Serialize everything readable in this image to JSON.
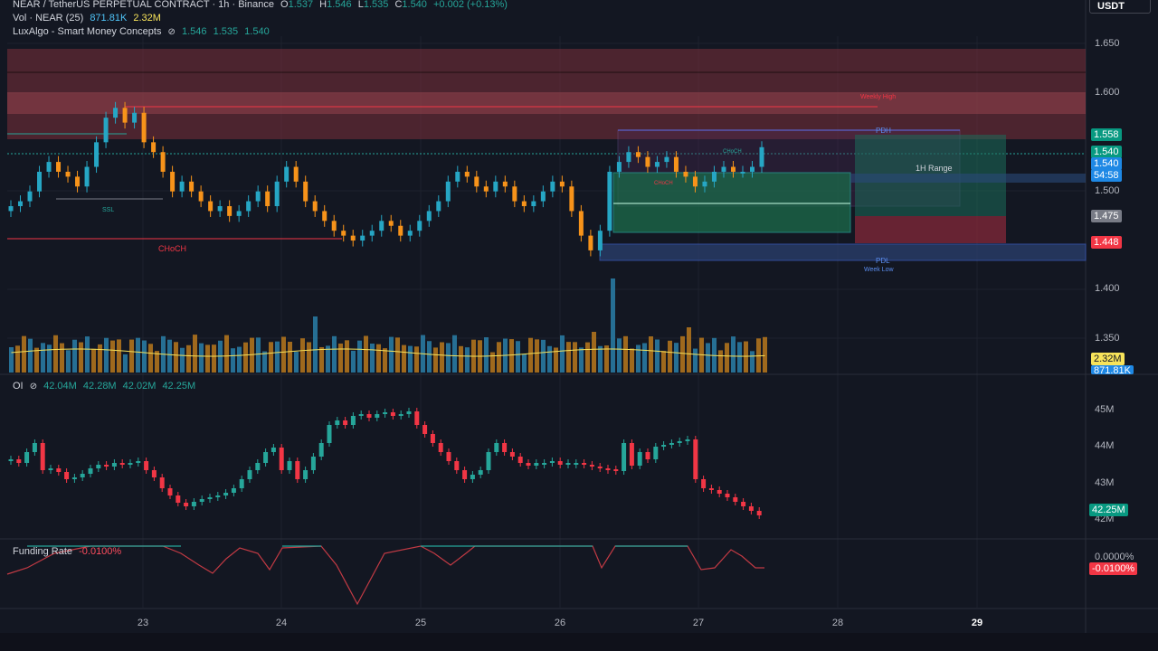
{
  "header": {
    "symbol": "NEAR / TetherUS PERPETUAL CONTRACT · 1h · Binance",
    "o_label": "O",
    "o": "1.537",
    "h_label": "H",
    "h": "1.546",
    "l_label": "L",
    "l": "1.535",
    "c_label": "C",
    "c": "1.540",
    "change": "+0.002 (+0.13%)"
  },
  "volume_legend": {
    "label": "Vol · NEAR (25)",
    "v1": "871.81K",
    "v2": "2.32M"
  },
  "indicator_legend": {
    "label": "LuxAlgo - Smart Money Concepts",
    "icon": "eye-slash-icon",
    "v1": "1.546",
    "v2": "1.535",
    "v3": "1.540"
  },
  "oi_legend": {
    "label": "OI",
    "icon": "eye-slash-icon",
    "v1": "42.04M",
    "v2": "42.28M",
    "v3": "42.02M",
    "v4": "42.25M"
  },
  "funding_legend": {
    "label": "Funding Rate",
    "value": "-0.0100%"
  },
  "currency_button": "USDT",
  "price_axis": {
    "ticks": [
      {
        "label": "1.650",
        "value": 1.65
      },
      {
        "label": "1.600",
        "value": 1.6
      },
      {
        "label": "1.500",
        "value": 1.5
      },
      {
        "label": "1.400",
        "value": 1.4
      },
      {
        "label": "1.350",
        "value": 1.35
      }
    ],
    "tags": [
      {
        "label": "1.558",
        "value": 1.558,
        "color": "#089981"
      },
      {
        "label": "1.540",
        "value": 1.54,
        "color": "#089981"
      },
      {
        "label": "1.540",
        "value": 1.528,
        "color": "#1e88e5"
      },
      {
        "label": "54:58",
        "value": 1.516,
        "color": "#1e88e5"
      },
      {
        "label": "1.475",
        "value": 1.475,
        "color": "#787b86"
      },
      {
        "label": "1.448",
        "value": 1.448,
        "color": "#f23645"
      }
    ],
    "volume_tags": [
      {
        "label": "2.32M",
        "color": "#f7e35a",
        "text": "#131722"
      },
      {
        "label": "871.81K",
        "color": "#1e88e5",
        "text": "#fff"
      }
    ]
  },
  "oi_axis": {
    "ticks": [
      "45M",
      "44M",
      "43M",
      "42M"
    ],
    "tag": "42.25M"
  },
  "funding_axis": {
    "tick": "0.0000%",
    "tag": "-0.0100%"
  },
  "time_axis": {
    "labels": [
      "23",
      "24",
      "25",
      "26",
      "27",
      "28",
      "29"
    ]
  },
  "annotations": {
    "choch_main": "CHoCH",
    "ssl": "SSL",
    "pdh": "PDH",
    "pdl": "PDL",
    "week_low": "Week Low",
    "range": "1H Range",
    "weekly_high": "Weekly High",
    "choch_small": "CHoCH",
    "bos_small": "CHoCH"
  },
  "colors": {
    "background": "#131722",
    "up": "#26a69a",
    "down": "#f7931a",
    "bear_zone": "#7b2f3b",
    "bull_box": "#1b6b4a",
    "blue_box": "#2a3f6e"
  },
  "chart_data": {
    "type": "candlestick",
    "x_labels": [
      "23",
      "24",
      "25",
      "26",
      "27",
      "28",
      "29"
    ],
    "price_range": [
      1.33,
      1.67
    ],
    "last_price": 1.54,
    "oi_last": "42.25M",
    "funding_last": "-0.0100%"
  }
}
